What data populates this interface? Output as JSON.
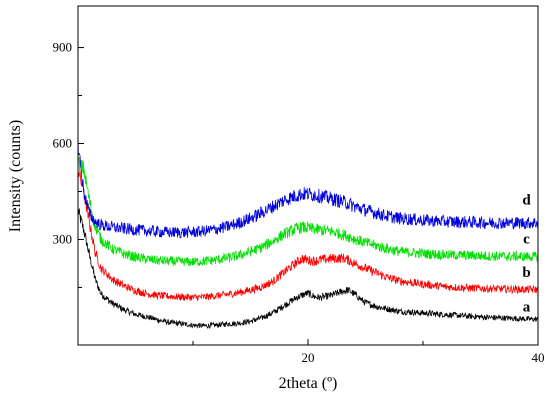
{
  "chart_data": {
    "type": "line",
    "xlabel": "2theta (º)",
    "ylabel": "Intensity (counts)",
    "xlim": [
      0,
      40
    ],
    "ylim": [
      -30,
      1030
    ],
    "x_ticks": [
      20,
      40
    ],
    "x_ticks_unlabeled": [
      10,
      30
    ],
    "y_ticks": [
      300,
      600,
      900
    ],
    "y_ticks_unlabeled": [
      150,
      450,
      750
    ],
    "grid": false,
    "legend": "none",
    "series": [
      {
        "name": "a",
        "color": "#000000",
        "x": [
          0,
          0.5,
          1,
          1.5,
          2,
          3,
          4,
          5,
          6,
          7,
          8,
          9,
          10,
          11,
          12,
          13,
          14,
          15,
          16,
          17,
          18,
          19,
          19.5,
          20,
          20.5,
          21,
          22,
          23,
          23.5,
          24,
          25,
          26,
          27,
          28,
          30,
          32,
          34,
          36,
          38,
          40
        ],
        "y": [
          390,
          330,
          250,
          175,
          130,
          100,
          80,
          66,
          58,
          48,
          40,
          36,
          32,
          30,
          32,
          36,
          38,
          44,
          55,
          72,
          95,
          118,
          126,
          132,
          122,
          118,
          125,
          138,
          142,
          130,
          102,
          90,
          82,
          75,
          70,
          65,
          60,
          56,
          53,
          50
        ]
      },
      {
        "name": "b",
        "color": "#ff0000",
        "x": [
          0,
          0.5,
          1,
          1.5,
          2,
          3,
          4,
          5,
          6,
          7,
          8,
          9,
          10,
          11,
          12,
          13,
          14,
          15,
          16,
          17,
          18,
          19,
          19.5,
          20,
          20.5,
          21,
          22,
          23,
          23.5,
          24,
          25,
          26,
          27,
          28,
          30,
          32,
          34,
          36,
          38,
          40
        ],
        "y": [
          520,
          450,
          350,
          260,
          210,
          175,
          155,
          140,
          130,
          125,
          122,
          120,
          119,
          120,
          124,
          128,
          134,
          142,
          152,
          170,
          200,
          228,
          240,
          236,
          232,
          236,
          240,
          242,
          236,
          226,
          210,
          195,
          180,
          170,
          160,
          152,
          148,
          146,
          144,
          143
        ]
      },
      {
        "name": "c",
        "color": "#00e000",
        "x": [
          0,
          0.5,
          1,
          1.5,
          2,
          3,
          4,
          5,
          6,
          7,
          8,
          9,
          10,
          11,
          12,
          13,
          14,
          15,
          16,
          17,
          18,
          19,
          19.5,
          20,
          20.5,
          21,
          22,
          23,
          23.5,
          24,
          25,
          26,
          27,
          28,
          30,
          32,
          34,
          36,
          38,
          40
        ],
        "y": [
          540,
          520,
          420,
          340,
          300,
          270,
          255,
          245,
          238,
          234,
          232,
          230,
          230,
          232,
          236,
          242,
          250,
          262,
          276,
          296,
          318,
          334,
          338,
          336,
          332,
          330,
          326,
          316,
          310,
          302,
          290,
          280,
          270,
          262,
          256,
          252,
          250,
          248,
          247,
          246
        ]
      },
      {
        "name": "d",
        "color": "#0000dd",
        "x": [
          0,
          0.5,
          1,
          1.5,
          2,
          3,
          4,
          5,
          6,
          7,
          8,
          9,
          10,
          11,
          12,
          13,
          14,
          15,
          16,
          17,
          18,
          19,
          19.5,
          20,
          20.5,
          21,
          22,
          23,
          23.5,
          24,
          25,
          26,
          27,
          28,
          30,
          32,
          34,
          36,
          38,
          40
        ],
        "y": [
          600,
          450,
          380,
          355,
          345,
          338,
          334,
          330,
          327,
          324,
          322,
          322,
          323,
          326,
          332,
          340,
          352,
          366,
          384,
          404,
          424,
          438,
          442,
          442,
          440,
          436,
          428,
          418,
          412,
          404,
          392,
          382,
          372,
          366,
          360,
          356,
          354,
          352,
          352,
          352
        ]
      }
    ],
    "series_labels": [
      {
        "text": "a",
        "x": 39,
        "y": 75
      },
      {
        "text": "b",
        "x": 39,
        "y": 182
      },
      {
        "text": "c",
        "x": 39,
        "y": 288
      },
      {
        "text": "d",
        "x": 39,
        "y": 410
      }
    ]
  }
}
